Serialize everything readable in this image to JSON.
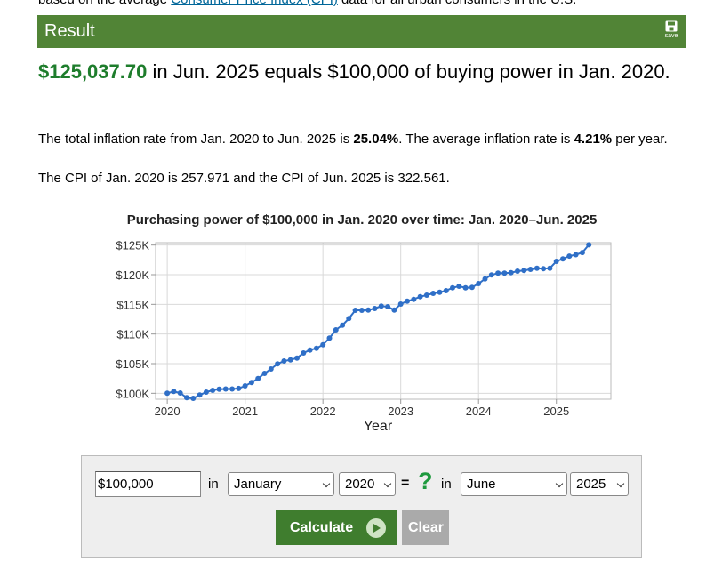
{
  "intro": {
    "prefix": "based on the average ",
    "link": "Consumer Price Index (CPI)",
    "suffix": " data for all urban consumers in the U.S."
  },
  "result_header": {
    "title": "Result",
    "save_label": "save"
  },
  "headline": {
    "amount": "$125,037.70",
    "text": " in Jun. 2025 equals $100,000 of buying power in Jan. 2020."
  },
  "summary": {
    "p1_start": "The total inflation rate from Jan. 2020 to Jun. 2025 is ",
    "total_rate": "25.04%",
    "p1_mid": ". The average inflation rate is ",
    "avg_rate": "4.21%",
    "p1_end": " per year.",
    "p2": "The CPI of Jan. 2020 is 257.971 and the CPI of Jun. 2025 is 322.561."
  },
  "chart_data": {
    "type": "line",
    "title": "Purchasing power of $100,000 in Jan. 2020 over time: Jan. 2020–Jun. 2025",
    "xlabel": "Year",
    "ylabel": "",
    "x_ticks": [
      "2020",
      "2021",
      "2022",
      "2023",
      "2024",
      "2025"
    ],
    "y_ticks": [
      "$100K",
      "$105K",
      "$110K",
      "$115K",
      "$120K",
      "$125K"
    ],
    "y_tick_values": [
      100000,
      105000,
      110000,
      115000,
      120000,
      125000
    ],
    "ylim": [
      99000,
      125400
    ],
    "xlim": [
      2019.85,
      2025.7
    ],
    "grid": true,
    "color": "#2f6fc7",
    "x_start": 2020,
    "series": [
      {
        "values": [
          100000,
          100300,
          100050,
          99250,
          99150,
          99700,
          100200,
          100500,
          100700,
          100730,
          100720,
          100820,
          101250,
          101800,
          102500,
          103350,
          104100,
          104950,
          105450,
          105650,
          105950,
          106800,
          107300,
          107600,
          108200,
          109300,
          110700,
          111500,
          112600,
          114000,
          114000,
          114050,
          114300,
          114700,
          114600,
          114050,
          115050,
          115550,
          115850,
          116300,
          116550,
          116850,
          117050,
          117300,
          117800,
          118050,
          117800,
          117850,
          118500,
          119300,
          119950,
          120270,
          120270,
          120350,
          120600,
          120720,
          120900,
          121080,
          121000,
          121100,
          122250,
          122670,
          123130,
          123380,
          123730,
          125038
        ]
      }
    ]
  },
  "calculator": {
    "amount_value": "$100,000",
    "in_label": "in",
    "from_month": "January",
    "from_year": "2020",
    "equals": "=",
    "question": "?",
    "to_month": "June",
    "to_year": "2025",
    "calculate_label": "Calculate",
    "clear_label": "Clear"
  }
}
